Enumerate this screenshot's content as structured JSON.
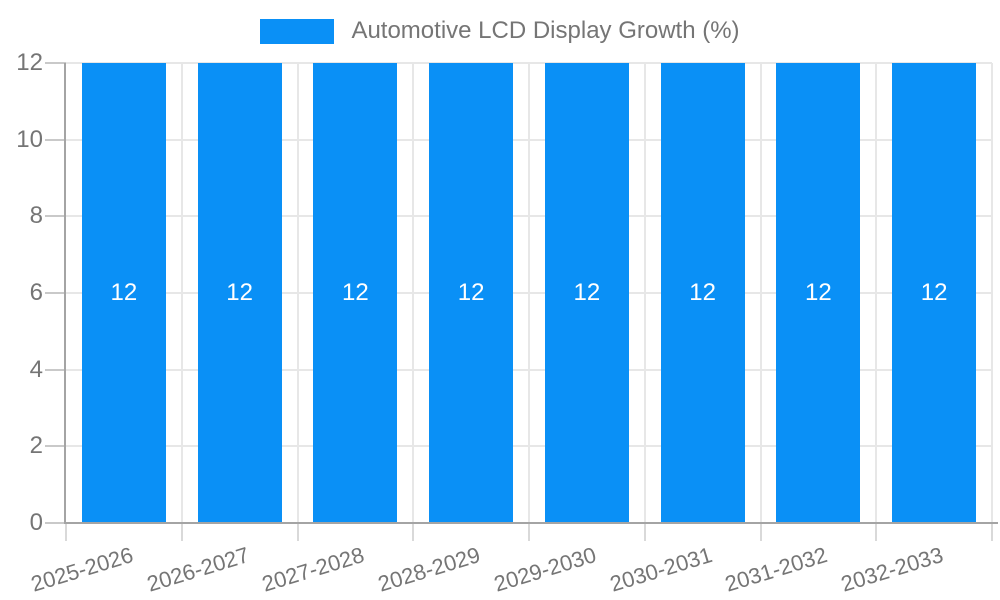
{
  "legend": {
    "items": [
      {
        "label": "Automotive LCD Display Growth (%)",
        "color": "#0A90F6"
      }
    ]
  },
  "chart_data": {
    "type": "bar",
    "title": "Automotive LCD Display Growth (%)",
    "categories": [
      "2025-2026",
      "2026-2027",
      "2027-2028",
      "2028-2029",
      "2029-2030",
      "2030-2031",
      "2031-2032",
      "2032-2033"
    ],
    "values": [
      12,
      12,
      12,
      12,
      12,
      12,
      12,
      12
    ],
    "bar_value_labels": [
      "12",
      "12",
      "12",
      "12",
      "12",
      "12",
      "12",
      "12"
    ],
    "xlabel": "",
    "ylabel": "",
    "ylim": [
      0,
      12
    ],
    "yticks": [
      0,
      2,
      4,
      6,
      8,
      10,
      12
    ],
    "ytick_labels": [
      "0",
      "2",
      "4",
      "6",
      "8",
      "10",
      "12"
    ],
    "grid": true,
    "legend_position": "top-center",
    "bar_color": "#0A90F6",
    "value_label_color": "#FFFFFF"
  },
  "colors": {
    "background": "#FFFFFF",
    "bar": "#0A90F6",
    "bar_label_text": "#FFFFFF",
    "axis_text": "#757575",
    "legend_text": "#757575",
    "gridline": "#E7E7E7",
    "y_tick": "#C9C9C9",
    "x_tick": "#D9D9D9",
    "axis_line": "#A4A4A4"
  }
}
